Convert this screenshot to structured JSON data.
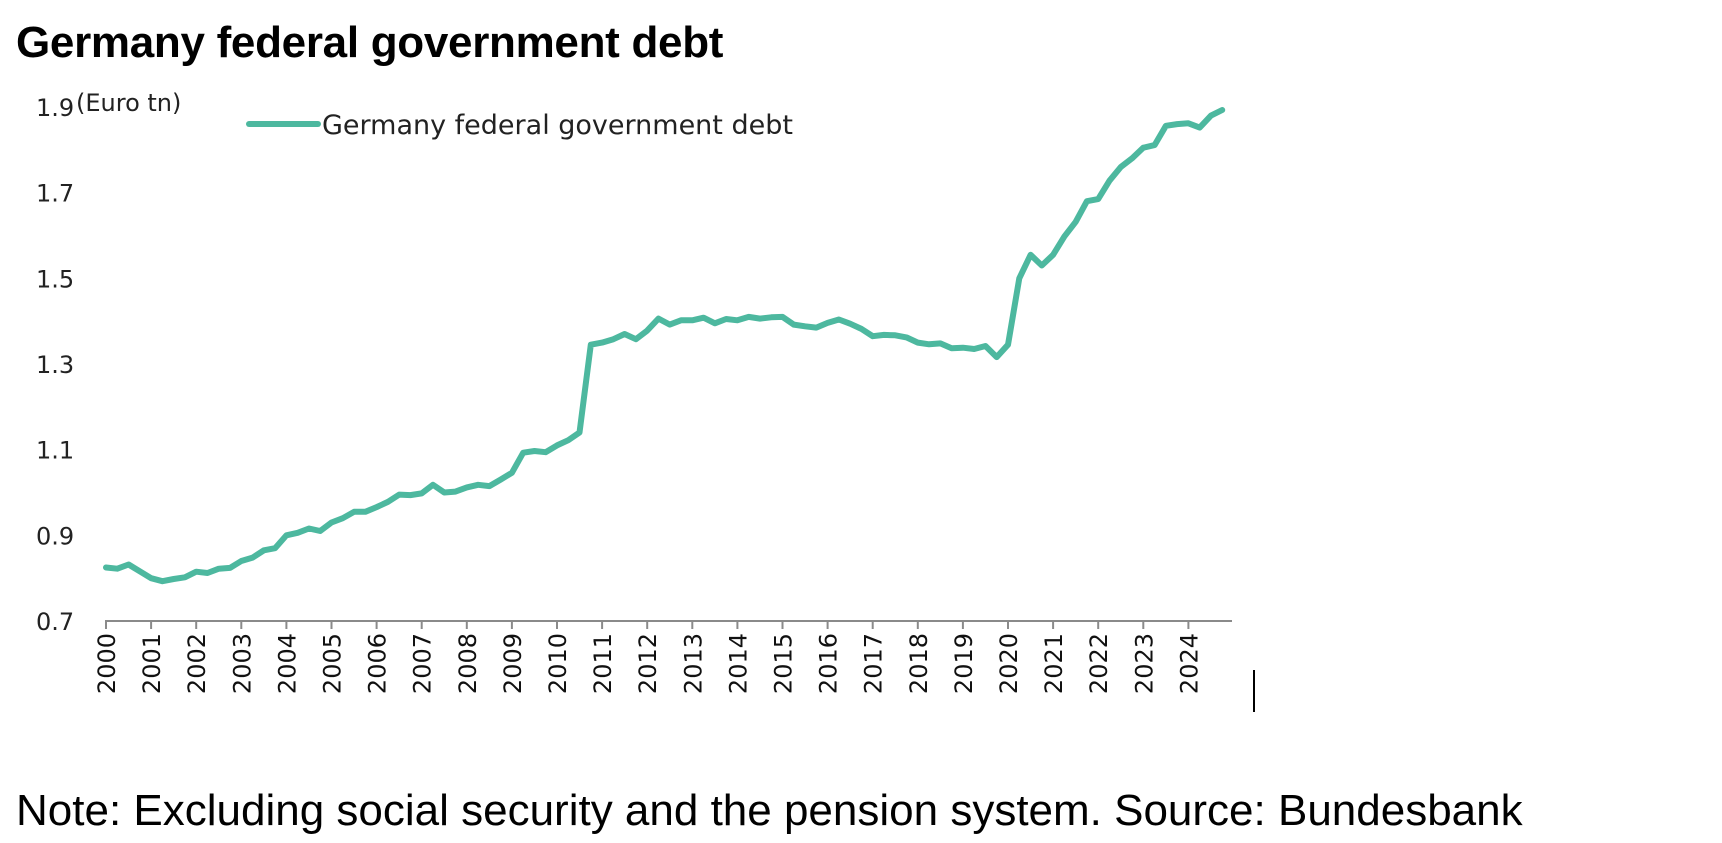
{
  "chart_data": {
    "type": "line",
    "title": "Germany federal government debt",
    "y_unit_label": "(Euro tn)",
    "xlabel": "",
    "ylabel": "",
    "ylim": [
      0.7,
      1.9
    ],
    "y_ticks": [
      0.7,
      0.9,
      1.1,
      1.3,
      1.5,
      1.7,
      1.9
    ],
    "xlim": [
      2000,
      2024.75
    ],
    "x_ticks": [
      "2000",
      "2001",
      "2002",
      "2003",
      "2004",
      "2005",
      "2006",
      "2007",
      "2008",
      "2009",
      "2010",
      "2011",
      "2012",
      "2013",
      "2014",
      "2015",
      "2016",
      "2017",
      "2018",
      "2019",
      "2020",
      "2021",
      "2022",
      "2023",
      "2024"
    ],
    "grid": false,
    "legend_position": "top-left",
    "series": [
      {
        "name": "Germany federal government debt",
        "color": "#4db89f",
        "x": [
          2000.0,
          2000.25,
          2000.5,
          2000.75,
          2001.0,
          2001.25,
          2001.5,
          2001.75,
          2002.0,
          2002.25,
          2002.5,
          2002.75,
          2003.0,
          2003.25,
          2003.5,
          2003.75,
          2004.0,
          2004.25,
          2004.5,
          2004.75,
          2005.0,
          2005.25,
          2005.5,
          2005.75,
          2006.0,
          2006.25,
          2006.5,
          2006.75,
          2007.0,
          2007.25,
          2007.5,
          2007.75,
          2008.0,
          2008.25,
          2008.5,
          2008.75,
          2009.0,
          2009.25,
          2009.5,
          2009.75,
          2010.0,
          2010.25,
          2010.5,
          2010.75,
          2011.0,
          2011.25,
          2011.5,
          2011.75,
          2012.0,
          2012.25,
          2012.5,
          2012.75,
          2013.0,
          2013.25,
          2013.5,
          2013.75,
          2014.0,
          2014.25,
          2014.5,
          2014.75,
          2015.0,
          2015.25,
          2015.5,
          2015.75,
          2016.0,
          2016.25,
          2016.5,
          2016.75,
          2017.0,
          2017.25,
          2017.5,
          2017.75,
          2018.0,
          2018.25,
          2018.5,
          2018.75,
          2019.0,
          2019.25,
          2019.5,
          2019.75,
          2020.0,
          2020.25,
          2020.5,
          2020.75,
          2021.0,
          2021.25,
          2021.5,
          2021.75,
          2022.0,
          2022.25,
          2022.5,
          2022.75,
          2023.0,
          2023.25,
          2023.5,
          2023.75,
          2024.0,
          2024.25,
          2024.5,
          2024.75
        ],
        "values": [
          0.825,
          0.822,
          0.832,
          0.816,
          0.8,
          0.793,
          0.798,
          0.802,
          0.815,
          0.812,
          0.822,
          0.824,
          0.84,
          0.848,
          0.865,
          0.87,
          0.9,
          0.906,
          0.916,
          0.91,
          0.93,
          0.94,
          0.955,
          0.955,
          0.966,
          0.978,
          0.995,
          0.994,
          0.998,
          1.018,
          1.0,
          1.002,
          1.012,
          1.018,
          1.015,
          1.03,
          1.046,
          1.093,
          1.097,
          1.094,
          1.11,
          1.122,
          1.14,
          1.345,
          1.35,
          1.358,
          1.37,
          1.358,
          1.378,
          1.406,
          1.392,
          1.402,
          1.402,
          1.408,
          1.395,
          1.405,
          1.402,
          1.41,
          1.406,
          1.409,
          1.41,
          1.392,
          1.388,
          1.385,
          1.396,
          1.404,
          1.394,
          1.382,
          1.365,
          1.368,
          1.367,
          1.362,
          1.35,
          1.346,
          1.348,
          1.337,
          1.338,
          1.335,
          1.342,
          1.316,
          1.345,
          1.5,
          1.555,
          1.53,
          1.555,
          1.598,
          1.632,
          1.68,
          1.685,
          1.728,
          1.76,
          1.78,
          1.805,
          1.811,
          1.856,
          1.86,
          1.862,
          1.852,
          1.88,
          1.893
        ]
      }
    ]
  },
  "note": "Note: Excluding social security and the pension system. Source: Bundesbank"
}
